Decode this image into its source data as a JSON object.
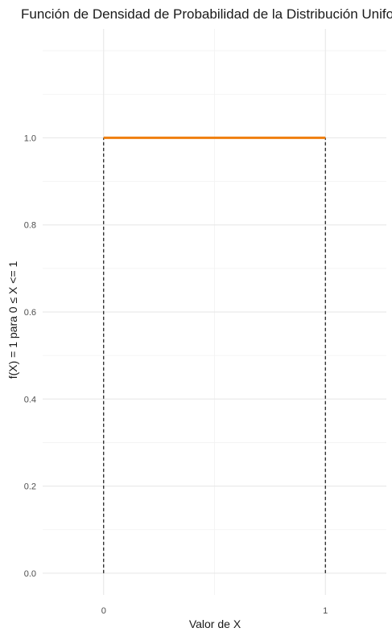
{
  "chart_data": {
    "type": "line",
    "title": "Función de Densidad de Probabilidad de la Distribución Uniforme",
    "xlabel": "Valor de X",
    "ylabel": "f(X) = 1 para 0 ≤ X <= 1",
    "xlim": [
      -0.275,
      1.275
    ],
    "ylim": [
      -0.05,
      1.25
    ],
    "x_ticks": [
      0,
      1
    ],
    "x_tick_labels": [
      "0",
      "1"
    ],
    "y_ticks": [
      0.0,
      0.2,
      0.4,
      0.6,
      0.8,
      1.0
    ],
    "y_tick_labels": [
      "0.0",
      "0.2",
      "0.4",
      "0.6",
      "0.8",
      "1.0"
    ],
    "grid": true,
    "series": [
      {
        "x": [
          0,
          1
        ],
        "y": [
          1,
          1
        ],
        "color": "#f07f0f",
        "style": "solid"
      }
    ],
    "reference_lines": [
      {
        "x": [
          0,
          0
        ],
        "y": [
          0,
          1
        ],
        "color": "#000000",
        "style": "dashed"
      },
      {
        "x": [
          1,
          1
        ],
        "y": [
          0,
          1
        ],
        "color": "#000000",
        "style": "dashed"
      }
    ]
  }
}
